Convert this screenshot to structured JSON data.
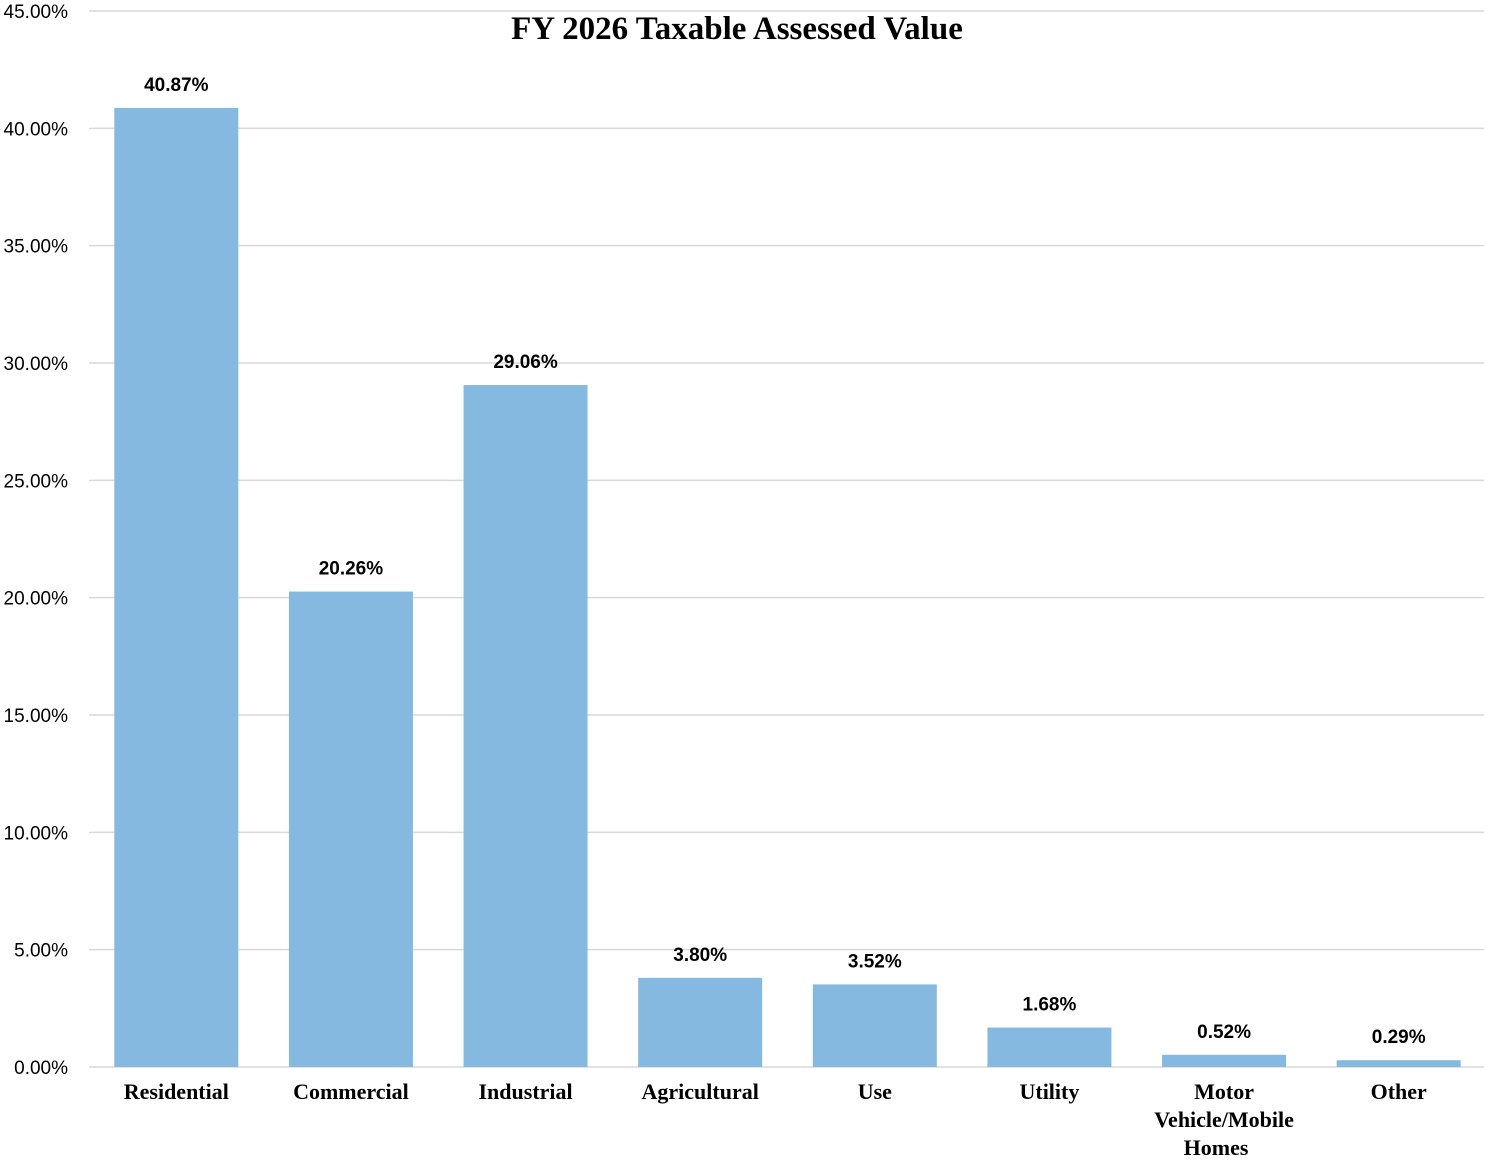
{
  "chart_data": {
    "type": "bar",
    "title": "FY 2026 Taxable Assessed Value",
    "xlabel": "",
    "ylabel": "",
    "categories": [
      [
        "Residential"
      ],
      [
        "Commercial"
      ],
      [
        "Industrial"
      ],
      [
        "Agricultural"
      ],
      [
        "Use"
      ],
      [
        "Utility"
      ],
      [
        "Motor",
        "Vehicle/Mobile",
        "Homes"
      ],
      [
        "Other"
      ]
    ],
    "values": [
      40.87,
      20.26,
      29.06,
      3.8,
      3.52,
      1.68,
      0.52,
      0.29
    ],
    "data_labels": [
      "40.87%",
      "20.26%",
      "29.06%",
      "3.80%",
      "3.52%",
      "1.68%",
      "0.52%",
      "0.29%"
    ],
    "ylim": [
      0,
      45
    ],
    "y_ticks": [
      0,
      5,
      10,
      15,
      20,
      25,
      30,
      35,
      40,
      45
    ],
    "y_tick_labels": [
      "0.00%",
      "5.00%",
      "10.00%",
      "15.00%",
      "20.00%",
      "25.00%",
      "30.00%",
      "35.00%",
      "40.00%",
      "45.00%"
    ],
    "grid": true,
    "legend": "none",
    "bar_color": "#85b9e0"
  }
}
